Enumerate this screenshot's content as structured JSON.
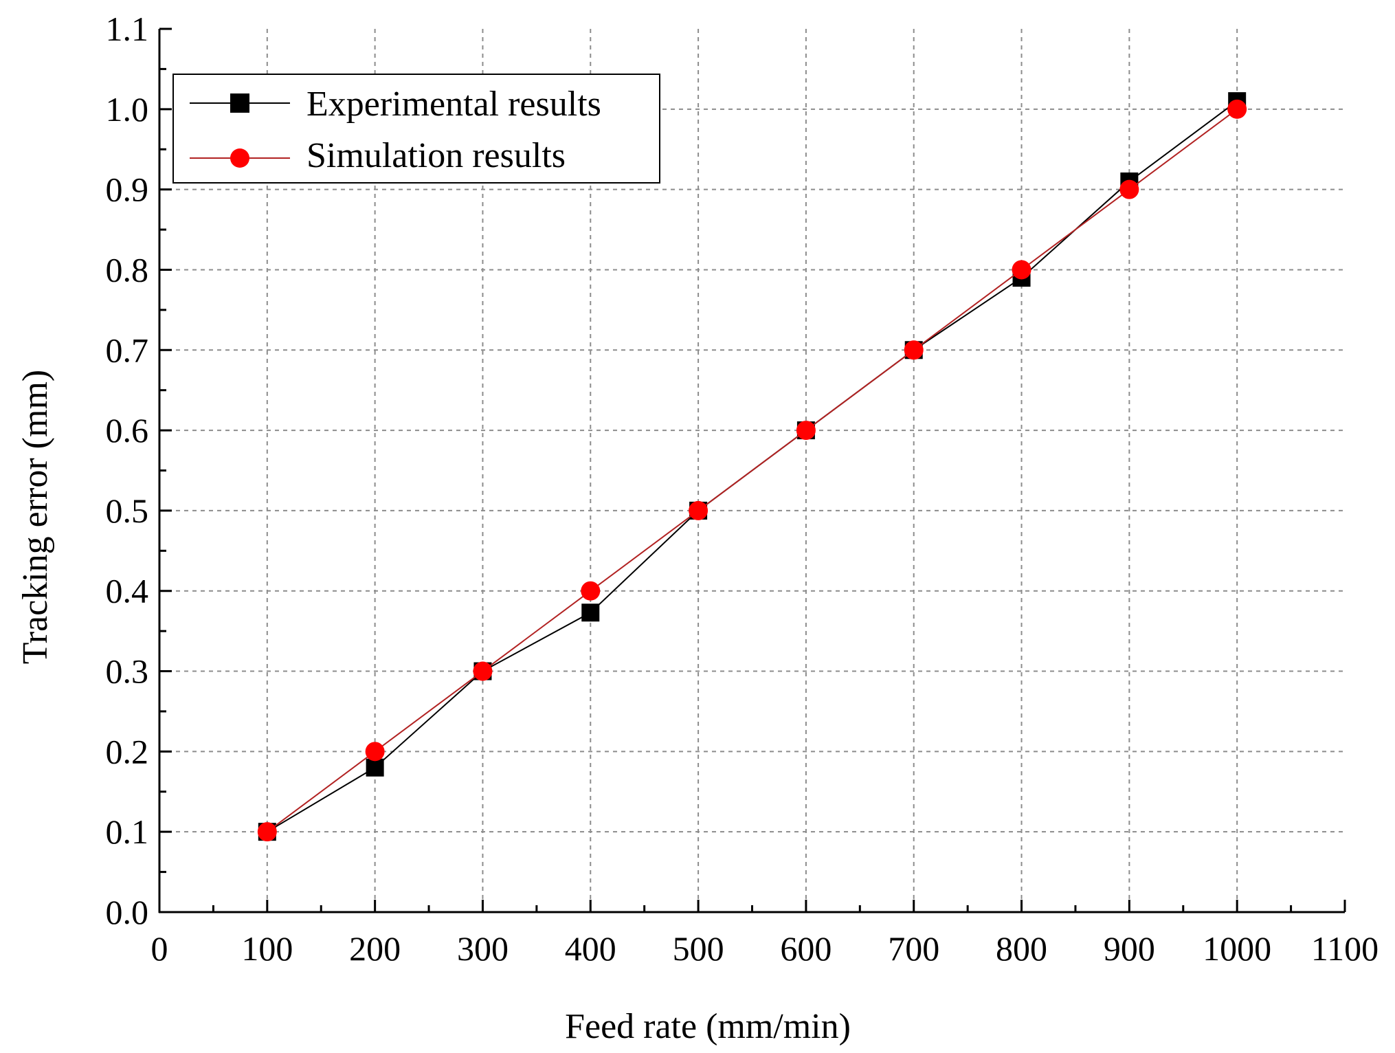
{
  "chart_data": {
    "type": "line",
    "title": "",
    "xlabel": "Feed rate (mm/min)",
    "ylabel": "Tracking error (mm)",
    "xlim": [
      0,
      1100
    ],
    "ylim": [
      0.0,
      1.1
    ],
    "grid": true,
    "x_ticks": [
      "0",
      "100",
      "200",
      "300",
      "400",
      "500",
      "600",
      "700",
      "800",
      "900",
      "1000",
      "1100"
    ],
    "y_ticks": [
      "0.0",
      "0.1",
      "0.2",
      "0.3",
      "0.4",
      "0.5",
      "0.6",
      "0.7",
      "0.8",
      "0.9",
      "1.0",
      "1.1"
    ],
    "legend_position": "top-left",
    "x": [
      100,
      200,
      300,
      400,
      500,
      600,
      700,
      800,
      900,
      1000
    ],
    "series": [
      {
        "name": "Experimental results",
        "marker": "square",
        "color": "#000000",
        "values": [
          0.1,
          0.18,
          0.3,
          0.373,
          0.5,
          0.6,
          0.7,
          0.79,
          0.91,
          1.01
        ]
      },
      {
        "name": "Simulation results",
        "marker": "circle",
        "color": "#ff0000",
        "line_color": "#b22222",
        "values": [
          0.1,
          0.2,
          0.3,
          0.4,
          0.5,
          0.6,
          0.7,
          0.8,
          0.9,
          1.0
        ]
      }
    ]
  }
}
